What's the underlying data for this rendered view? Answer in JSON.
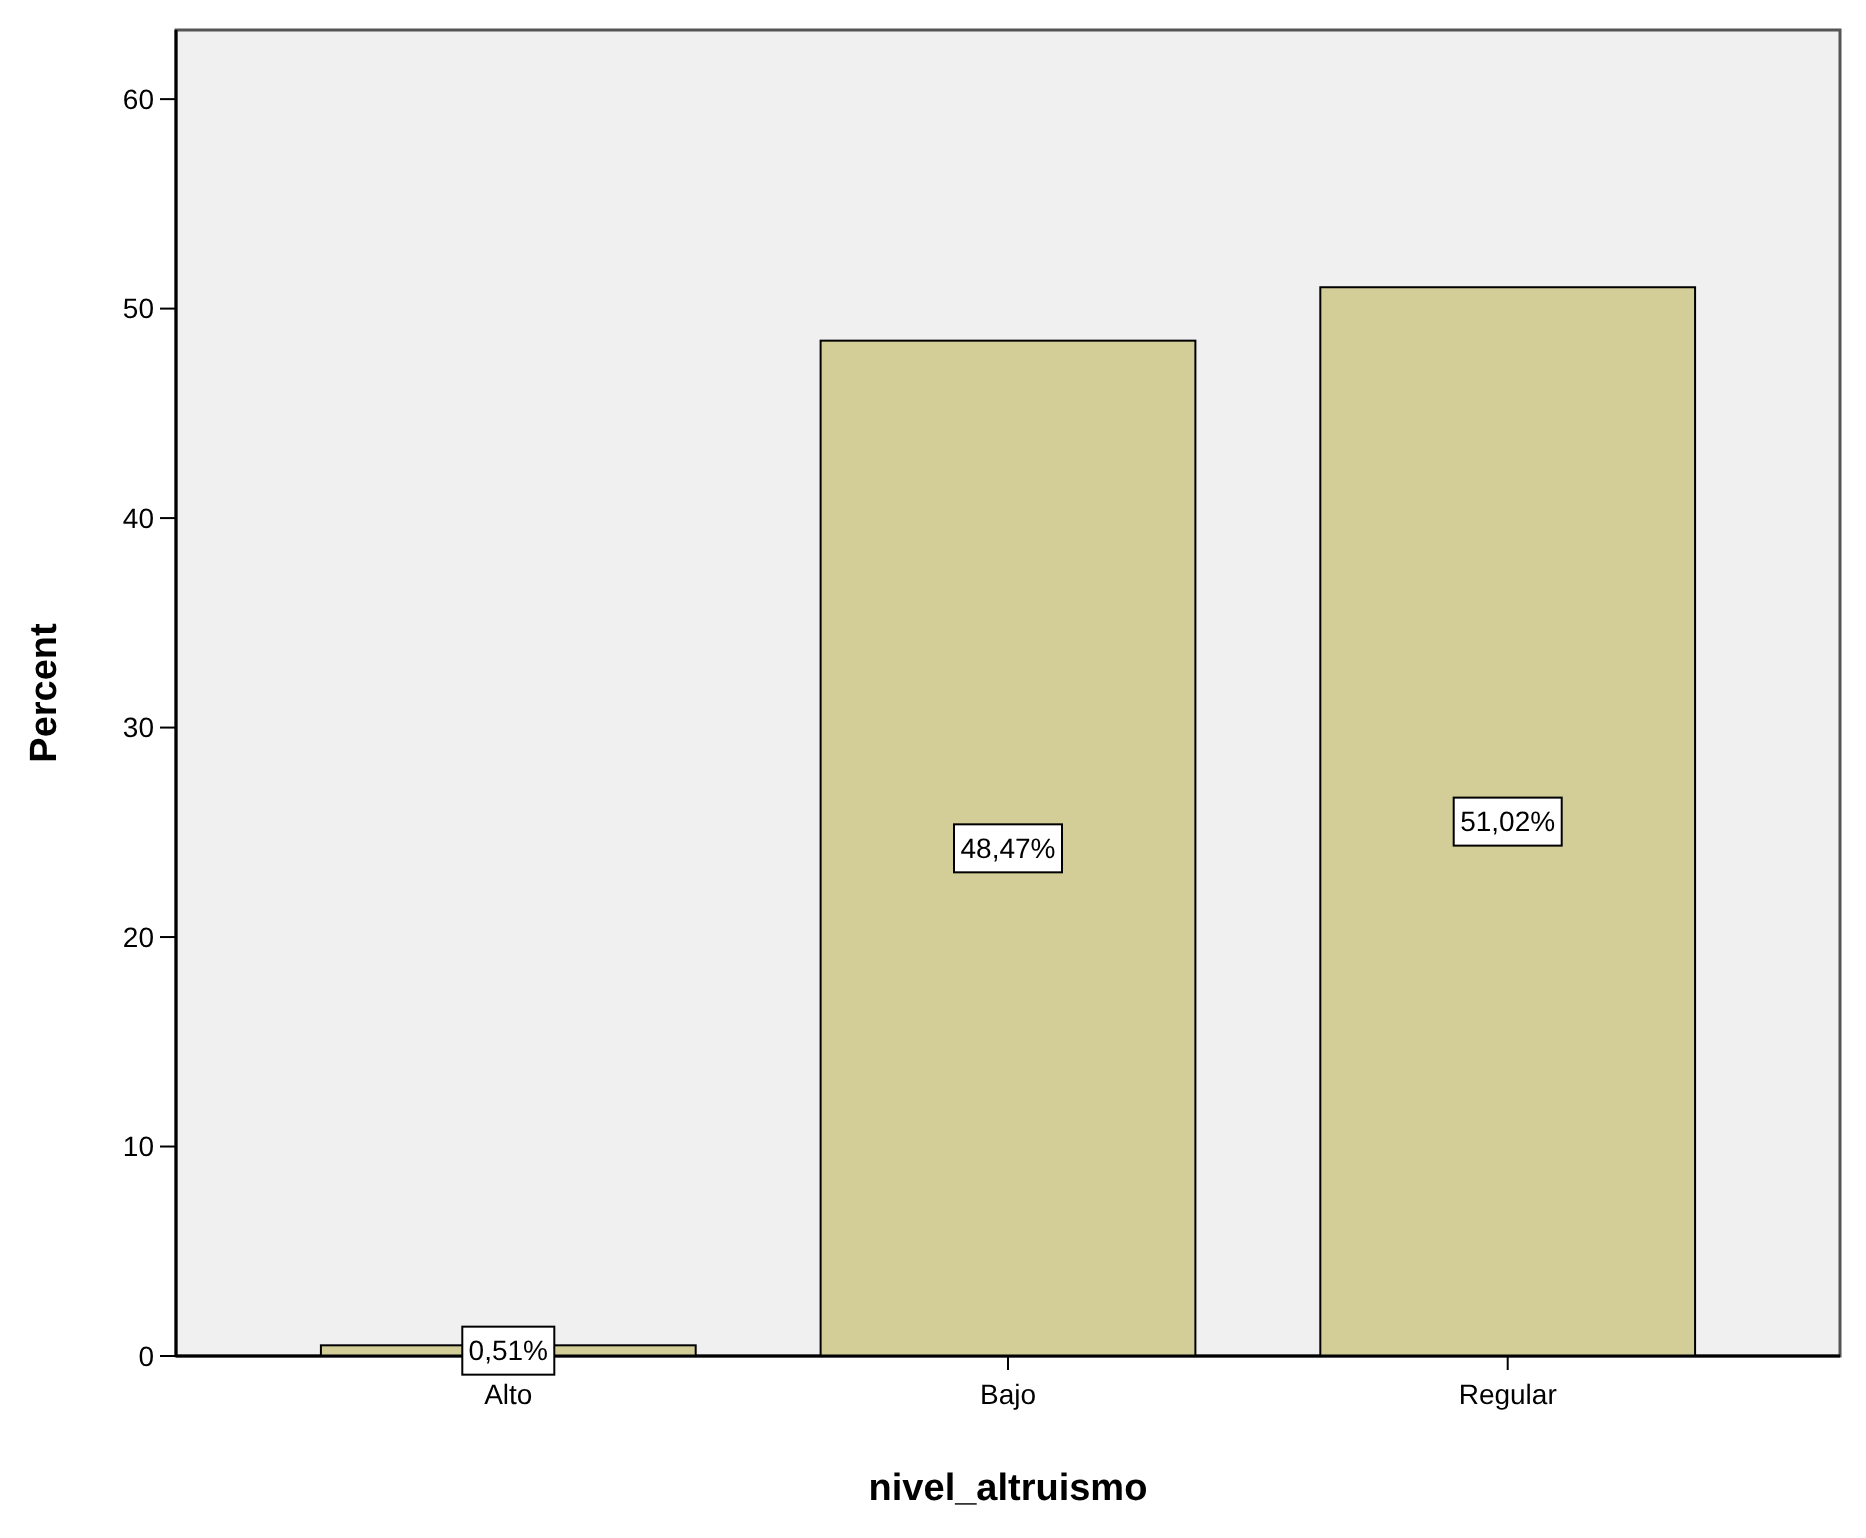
{
  "chart_data": {
    "type": "bar",
    "xlabel": "nivel_altruismo",
    "ylabel": "Percent",
    "categories": [
      "Alto",
      "Bajo",
      "Regular"
    ],
    "values": [
      0.51,
      48.47,
      51.02
    ],
    "value_labels": [
      "0,51%",
      "48,47%",
      "51,02%"
    ],
    "color": "#d3ce97",
    "ylim": [
      0,
      63.3
    ],
    "yticks": [
      0,
      10,
      20,
      30,
      40,
      50,
      60
    ],
    "grid": false
  }
}
